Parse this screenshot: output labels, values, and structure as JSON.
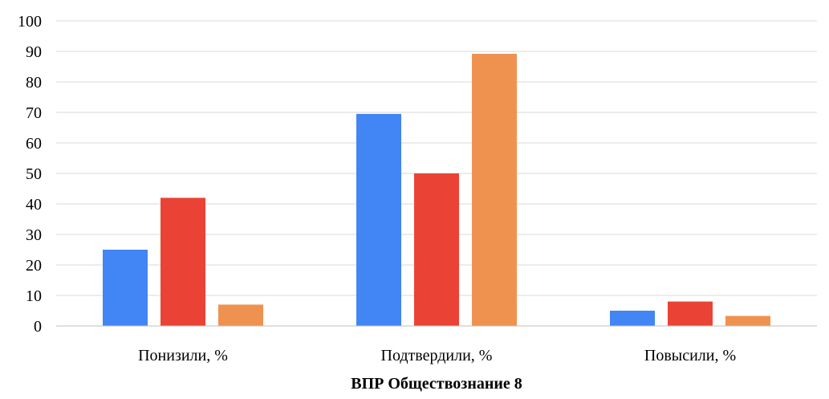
{
  "chart_data": {
    "type": "bar",
    "categories": [
      "Понизили, %",
      "Подтвердили, %",
      "Повысили, %"
    ],
    "series": [
      {
        "values": [
          25,
          69.5,
          5
        ],
        "color": "#4285f4"
      },
      {
        "values": [
          42,
          50,
          8
        ],
        "color": "#ea4335"
      },
      {
        "values": [
          7,
          89.2,
          3.3
        ],
        "color": "#f0924f"
      }
    ],
    "xlabel": "ВПР Обществознание 8",
    "ylabel": "",
    "ylim": [
      0,
      100
    ],
    "yticks": [
      "0",
      "10",
      "20",
      "30",
      "40",
      "50",
      "60",
      "70",
      "80",
      "90",
      "100"
    ],
    "grid": true,
    "legend": "none"
  }
}
